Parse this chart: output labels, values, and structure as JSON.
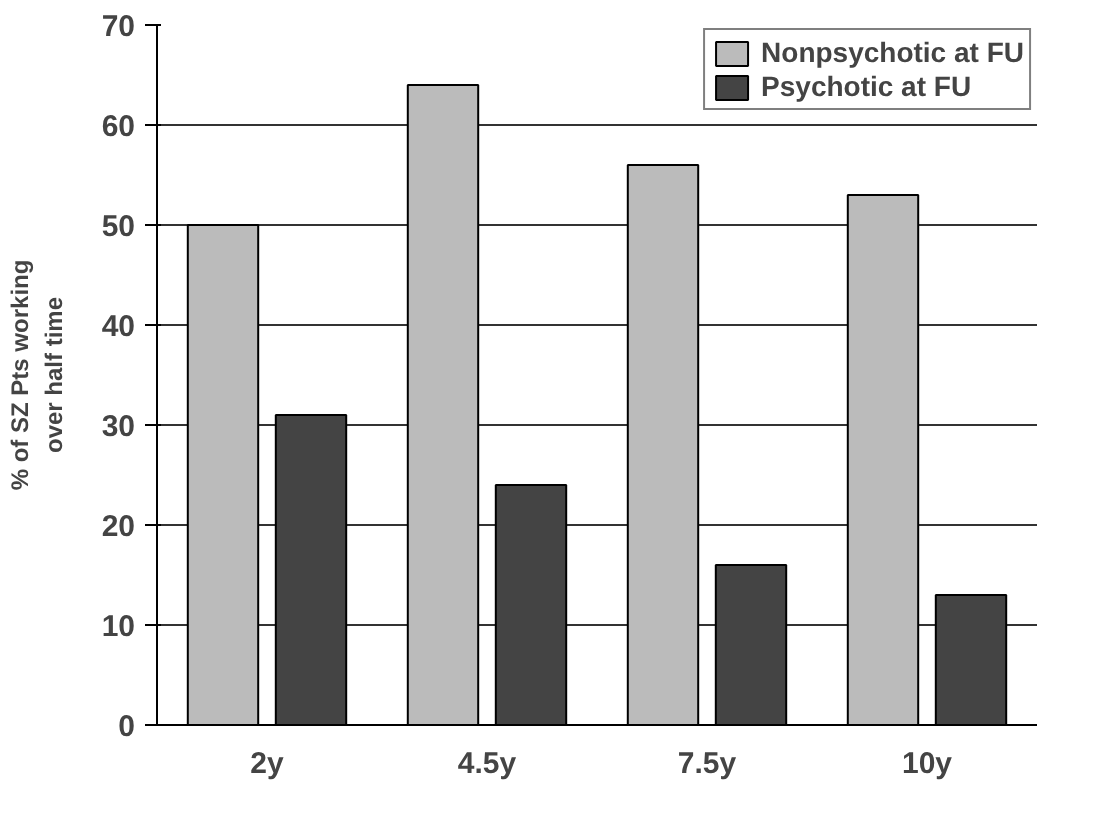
{
  "chart_data": {
    "type": "bar",
    "ylabel": "% of SZ Pts working\nover half time",
    "categories": [
      "2y",
      "4.5y",
      "7.5y",
      "10y"
    ],
    "series": [
      {
        "name": "Nonpsychotic at FU",
        "color": "#bbbbbb",
        "values": [
          50,
          64,
          56,
          53
        ]
      },
      {
        "name": "Psychotic at FU",
        "color": "#444444",
        "values": [
          31,
          24,
          16,
          13
        ]
      }
    ],
    "ylim": [
      0,
      70
    ],
    "yticks": [
      0,
      10,
      20,
      30,
      40,
      50,
      60,
      70
    ],
    "grid": "y",
    "legend": "top right"
  }
}
